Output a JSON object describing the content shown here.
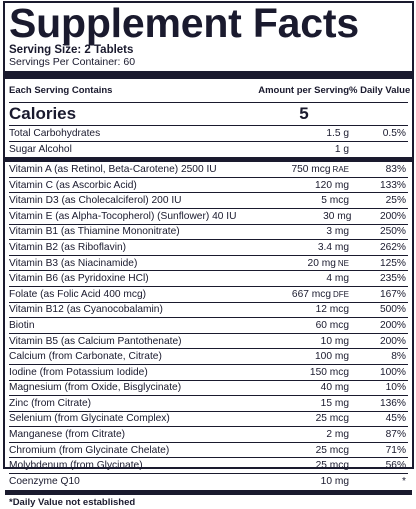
{
  "title": "Supplement Facts",
  "serving_size": "Serving Size: 2 Tablets",
  "servings_per_container": "Servings Per Container: 60",
  "header": {
    "name": "Each Serving Contains",
    "amount": "Amount per Serving",
    "dv": "% Daily Value"
  },
  "calories": {
    "label": "Calories",
    "amount": "5"
  },
  "group1": [
    {
      "name": "Total Carbohydrates",
      "amount": "1.5 g",
      "unit": "",
      "dv": "0.5%"
    },
    {
      "name": "Sugar Alcohol",
      "amount": "1 g",
      "unit": "",
      "dv": ""
    }
  ],
  "group2": [
    {
      "name": "Vitamin A (as Retinol, Beta-Carotene) 2500 IU",
      "amount": "750 mcg",
      "unit": "RAE",
      "dv": "83%"
    },
    {
      "name": "Vitamin C (as Ascorbic Acid)",
      "amount": "120 mg",
      "unit": "",
      "dv": "133%"
    },
    {
      "name": "Vitamin D3 (as Cholecalciferol) 200 IU",
      "amount": "5 mcg",
      "unit": "",
      "dv": "25%"
    },
    {
      "name": "Vitamin E (as Alpha-Tocopherol) (Sunflower) 40 IU",
      "amount": "30 mg",
      "unit": "",
      "dv": "200%"
    },
    {
      "name": "Vitamin B1 (as Thiamine Mononitrate)",
      "amount": "3 mg",
      "unit": "",
      "dv": "250%"
    },
    {
      "name": "Vitamin B2 (as Riboflavin)",
      "amount": "3.4 mg",
      "unit": "",
      "dv": "262%"
    },
    {
      "name": "Vitamin B3 (as Niacinamide)",
      "amount": "20 mg",
      "unit": "NE",
      "dv": "125%"
    },
    {
      "name": "Vitamin B6 (as Pyridoxine HCl)",
      "amount": "4 mg",
      "unit": "",
      "dv": "235%"
    },
    {
      "name": "Folate (as Folic Acid 400 mcg)",
      "amount": "667 mcg",
      "unit": "DFE",
      "dv": "167%"
    },
    {
      "name": "Vitamin B12 (as Cyanocobalamin)",
      "amount": "12 mcg",
      "unit": "",
      "dv": "500%"
    },
    {
      "name": "Biotin",
      "amount": "60 mcg",
      "unit": "",
      "dv": "200%"
    },
    {
      "name": "Vitamin B5 (as Calcium Pantothenate)",
      "amount": "10 mg",
      "unit": "",
      "dv": "200%"
    },
    {
      "name": "Calcium (from Carbonate, Citrate)",
      "amount": "100 mg",
      "unit": "",
      "dv": "8%"
    },
    {
      "name": "Iodine (from Potassium Iodide)",
      "amount": "150 mcg",
      "unit": "",
      "dv": "100%"
    },
    {
      "name": "Magnesium (from Oxide, Bisglycinate)",
      "amount": "40 mg",
      "unit": "",
      "dv": "10%"
    },
    {
      "name": "Zinc (from Citrate)",
      "amount": "15 mg",
      "unit": "",
      "dv": "136%"
    },
    {
      "name": "Selenium (from Glycinate Complex)",
      "amount": "25 mcg",
      "unit": "",
      "dv": "45%"
    },
    {
      "name": "Manganese (from Citrate)",
      "amount": "2 mg",
      "unit": "",
      "dv": "87%"
    },
    {
      "name": "Chromium (from Glycinate Chelate)",
      "amount": "25 mcg",
      "unit": "",
      "dv": "71%"
    },
    {
      "name": "Molybdenum (from Glycinate)",
      "amount": "25 mcg",
      "unit": "",
      "dv": "56%"
    },
    {
      "name": "Coenzyme Q10",
      "amount": "10 mg",
      "unit": "",
      "dv": "*"
    }
  ],
  "footnote": "*Daily Value not established",
  "colors": {
    "ink": "#1a1a2e",
    "background": "#ffffff"
  }
}
